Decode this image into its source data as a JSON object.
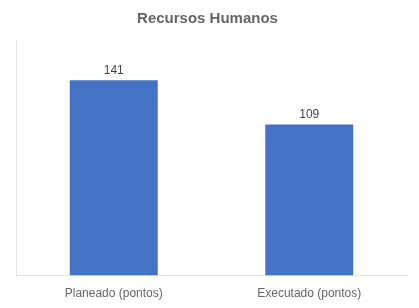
{
  "chart_data": {
    "type": "bar",
    "title": "Recursos Humanos",
    "categories": [
      "Planeado (pontos)",
      "Executado (pontos)"
    ],
    "values": [
      141,
      109
    ],
    "color": "#4472C4",
    "ylim": [
      0,
      170
    ],
    "grid": false,
    "data_labels": true,
    "tick_labels": "x"
  }
}
